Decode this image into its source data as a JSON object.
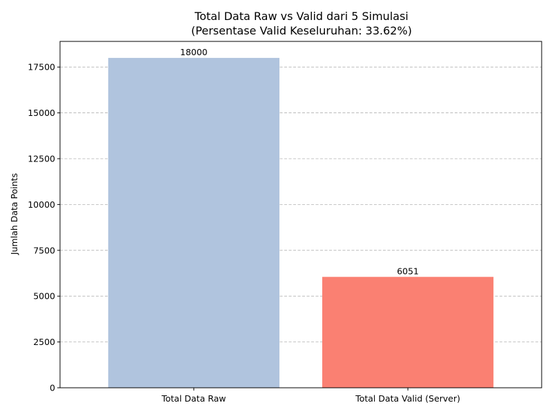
{
  "chart_data": {
    "type": "bar",
    "title": "Total Data Raw vs Valid dari 5 Simulasi",
    "subtitle": "(Persentase Valid Keseluruhan: 33.62%)",
    "xlabel": "",
    "ylabel": "Jumlah Data Points",
    "categories": [
      "Total Data Raw",
      "Total Data Valid (Server)"
    ],
    "values": [
      18000,
      6051
    ],
    "data_labels": [
      "18000",
      "6051"
    ],
    "colors": [
      "#b0c4de",
      "#fa8072"
    ],
    "ylim": [
      0,
      18900
    ],
    "yticks": [
      0,
      2500,
      5000,
      7500,
      10000,
      12500,
      15000,
      17500
    ],
    "grid": "y-dashed",
    "legend": "none"
  }
}
